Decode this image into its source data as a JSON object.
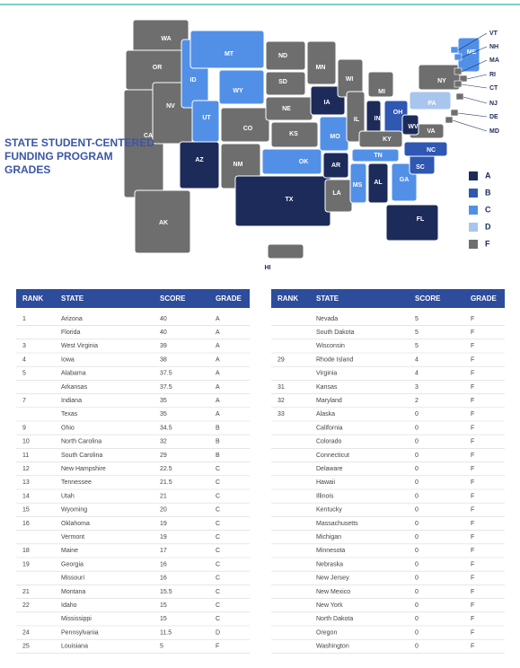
{
  "title": "STATE STUDENT-CENTERED FUNDING PROGRAM GRADES",
  "legend": [
    {
      "grade": "A",
      "color": "#1c2b5a"
    },
    {
      "grade": "B",
      "color": "#2f57b3"
    },
    {
      "grade": "C",
      "color": "#5290e8"
    },
    {
      "grade": "D",
      "color": "#a8c5ee"
    },
    {
      "grade": "F",
      "color": "#6e6e6e"
    }
  ],
  "map": {
    "states": [
      {
        "label": "WA",
        "grade": "F"
      },
      {
        "label": "OR",
        "grade": "F"
      },
      {
        "label": "CA",
        "grade": "F"
      },
      {
        "label": "NV",
        "grade": "F"
      },
      {
        "label": "ID",
        "grade": "C"
      },
      {
        "label": "MT",
        "grade": "C"
      },
      {
        "label": "WY",
        "grade": "C"
      },
      {
        "label": "UT",
        "grade": "C"
      },
      {
        "label": "AZ",
        "grade": "A"
      },
      {
        "label": "CO",
        "grade": "F"
      },
      {
        "label": "NM",
        "grade": "F"
      },
      {
        "label": "ND",
        "grade": "F"
      },
      {
        "label": "SD",
        "grade": "F"
      },
      {
        "label": "NE",
        "grade": "F"
      },
      {
        "label": "KS",
        "grade": "F"
      },
      {
        "label": "OK",
        "grade": "C"
      },
      {
        "label": "TX",
        "grade": "A"
      },
      {
        "label": "MN",
        "grade": "F"
      },
      {
        "label": "IA",
        "grade": "A"
      },
      {
        "label": "MO",
        "grade": "C"
      },
      {
        "label": "AR",
        "grade": "A"
      },
      {
        "label": "LA",
        "grade": "F"
      },
      {
        "label": "WI",
        "grade": "F"
      },
      {
        "label": "IL",
        "grade": "F"
      },
      {
        "label": "MI",
        "grade": "F"
      },
      {
        "label": "IN",
        "grade": "A"
      },
      {
        "label": "OH",
        "grade": "B"
      },
      {
        "label": "KY",
        "grade": "F"
      },
      {
        "label": "TN",
        "grade": "C"
      },
      {
        "label": "MS",
        "grade": "C"
      },
      {
        "label": "AL",
        "grade": "A"
      },
      {
        "label": "GA",
        "grade": "C"
      },
      {
        "label": "FL",
        "grade": "A"
      },
      {
        "label": "SC",
        "grade": "B"
      },
      {
        "label": "NC",
        "grade": "B"
      },
      {
        "label": "VA",
        "grade": "F"
      },
      {
        "label": "WV",
        "grade": "A"
      },
      {
        "label": "PA",
        "grade": "D"
      },
      {
        "label": "NY",
        "grade": "F"
      },
      {
        "label": "ME",
        "grade": "C"
      },
      {
        "label": "AK",
        "grade": "F"
      },
      {
        "label": "HI",
        "grade": "F"
      },
      {
        "label": "VT",
        "grade": "C"
      },
      {
        "label": "NH",
        "grade": "C"
      },
      {
        "label": "MA",
        "grade": "F"
      },
      {
        "label": "RI",
        "grade": "F"
      },
      {
        "label": "CT",
        "grade": "F"
      },
      {
        "label": "NJ",
        "grade": "F"
      },
      {
        "label": "DE",
        "grade": "F"
      },
      {
        "label": "MD",
        "grade": "F"
      }
    ]
  },
  "tables": [
    {
      "header": [
        "RANK",
        "STATE",
        "SCORE",
        "GRADE"
      ],
      "rows": [
        [
          1,
          "Arizona",
          40,
          "A"
        ],
        [
          null,
          "Florida",
          40,
          "A"
        ],
        [
          3,
          "West Virginia",
          39,
          "A"
        ],
        [
          4,
          "Iowa",
          38,
          "A"
        ],
        [
          5,
          "Alabama",
          37.5,
          "A"
        ],
        [
          null,
          "Arkansas",
          37.5,
          "A"
        ],
        [
          7,
          "Indiana",
          35,
          "A"
        ],
        [
          null,
          "Texas",
          35,
          "A"
        ],
        [
          9,
          "Ohio",
          34.5,
          "B"
        ],
        [
          10,
          "North Carolina",
          32,
          "B"
        ],
        [
          11,
          "South Carolina",
          29,
          "B"
        ],
        [
          12,
          "New Hampshire",
          22.5,
          "C"
        ],
        [
          13,
          "Tennessee",
          21.5,
          "C"
        ],
        [
          14,
          "Utah",
          21,
          "C"
        ],
        [
          15,
          "Wyoming",
          20,
          "C"
        ],
        [
          16,
          "Oklahoma",
          19,
          "C"
        ],
        [
          null,
          "Vermont",
          19,
          "C"
        ],
        [
          18,
          "Maine",
          17,
          "C"
        ],
        [
          19,
          "Georgia",
          16,
          "C"
        ],
        [
          null,
          "Missouri",
          16,
          "C"
        ],
        [
          21,
          "Montana",
          15.5,
          "C"
        ],
        [
          22,
          "Idaho",
          15,
          "C"
        ],
        [
          null,
          "Mississippi",
          15,
          "C"
        ],
        [
          24,
          "Pennsylvania",
          11.5,
          "D"
        ],
        [
          25,
          "Louisiana",
          5,
          "F"
        ]
      ]
    },
    {
      "header": [
        "RANK",
        "STATE",
        "SCORE",
        "GRADE"
      ],
      "rows": [
        [
          null,
          "Nevada",
          5,
          "F"
        ],
        [
          null,
          "South Dakota",
          5,
          "F"
        ],
        [
          null,
          "Wisconsin",
          5,
          "F"
        ],
        [
          29,
          "Rhode Island",
          4,
          "F"
        ],
        [
          null,
          "Virginia",
          4,
          "F"
        ],
        [
          31,
          "Kansas",
          3,
          "F"
        ],
        [
          32,
          "Maryland",
          2,
          "F"
        ],
        [
          33,
          "Alaska",
          0,
          "F"
        ],
        [
          null,
          "California",
          0,
          "F"
        ],
        [
          null,
          "Colorado",
          0,
          "F"
        ],
        [
          null,
          "Connecticut",
          0,
          "F"
        ],
        [
          null,
          "Delaware",
          0,
          "F"
        ],
        [
          null,
          "Hawaii",
          0,
          "F"
        ],
        [
          null,
          "Illinois",
          0,
          "F"
        ],
        [
          null,
          "Kentucky",
          0,
          "F"
        ],
        [
          null,
          "Massachusetts",
          0,
          "F"
        ],
        [
          null,
          "Michigan",
          0,
          "F"
        ],
        [
          null,
          "Minnesota",
          0,
          "F"
        ],
        [
          null,
          "Nebraska",
          0,
          "F"
        ],
        [
          null,
          "New Jersey",
          0,
          "F"
        ],
        [
          null,
          "New Mexico",
          0,
          "F"
        ],
        [
          null,
          "New York",
          0,
          "F"
        ],
        [
          null,
          "North Dakota",
          0,
          "F"
        ],
        [
          null,
          "Oregon",
          0,
          "F"
        ],
        [
          null,
          "Washington",
          0,
          "F"
        ]
      ]
    }
  ]
}
